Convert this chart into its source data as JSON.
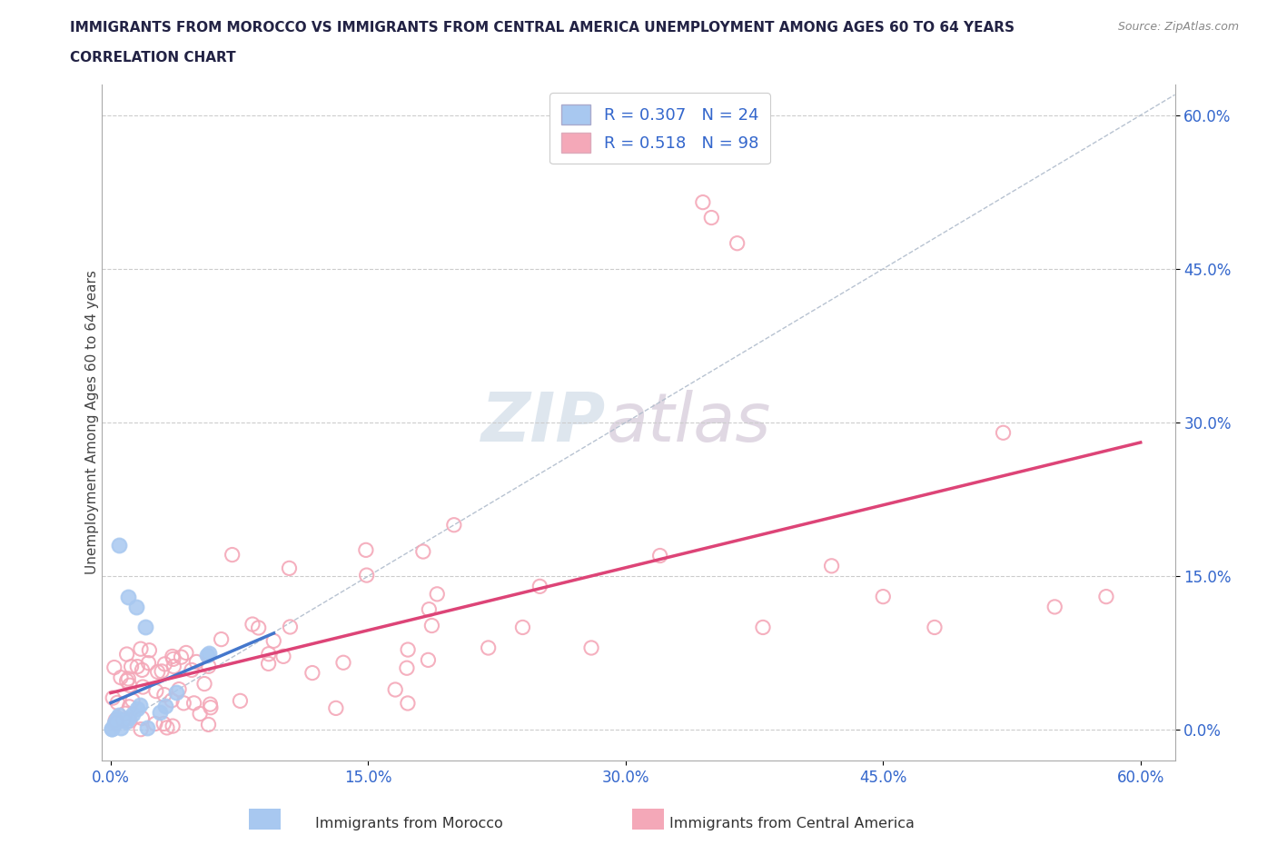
{
  "title_line1": "IMMIGRANTS FROM MOROCCO VS IMMIGRANTS FROM CENTRAL AMERICA UNEMPLOYMENT AMONG AGES 60 TO 64 YEARS",
  "title_line2": "CORRELATION CHART",
  "source": "Source: ZipAtlas.com",
  "ylabel": "Unemployment Among Ages 60 to 64 years",
  "xlim": [
    -0.005,
    0.62
  ],
  "ylim": [
    -0.03,
    0.63
  ],
  "xticks": [
    0.0,
    0.15,
    0.3,
    0.45,
    0.6
  ],
  "yticks": [
    0.0,
    0.15,
    0.3,
    0.45,
    0.6
  ],
  "xticklabels": [
    "0.0%",
    "15.0%",
    "30.0%",
    "45.0%",
    "60.0%"
  ],
  "yticklabels": [
    "0.0%",
    "15.0%",
    "30.0%",
    "45.0%",
    "60.0%"
  ],
  "r_morocco": 0.307,
  "n_morocco": 24,
  "r_central": 0.518,
  "n_central": 98,
  "morocco_color": "#a8c8f0",
  "morocco_edge_color": "#7aaad0",
  "central_color": "#f4a8b8",
  "central_edge_color": "#e07890",
  "morocco_line_color": "#4477cc",
  "central_line_color": "#dd4477",
  "diag_color": "#b0bccc",
  "watermark_zip": "ZIP",
  "watermark_atlas": "atlas",
  "watermark_color_zip": "#c8d4e0",
  "watermark_color_atlas": "#c8b8cc",
  "background_color": "#ffffff",
  "legend_label_morocco": "Immigrants from Morocco",
  "legend_label_central": "Immigrants from Central America"
}
